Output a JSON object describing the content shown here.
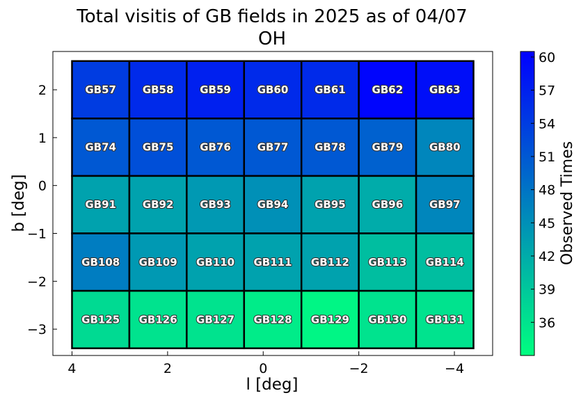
{
  "chart_data": {
    "type": "heatmap",
    "title": "Total visitis of GB fields in 2025 as of 04/07",
    "subtitle": "OH",
    "xlabel": "l [deg]",
    "ylabel": "b [deg]",
    "xlim": [
      4.4,
      -4.8
    ],
    "ylim": [
      -3.55,
      2.8
    ],
    "x_ticks": [
      4,
      2,
      0,
      -2,
      -4
    ],
    "x_tick_labels": [
      "4",
      "2",
      "0",
      "−2",
      "−4"
    ],
    "y_ticks": [
      2,
      1,
      0,
      -1,
      -2,
      -3
    ],
    "y_tick_labels": [
      "2",
      "1",
      "0",
      "−1",
      "−2",
      "−3"
    ],
    "colorbar": {
      "label": "Observed Times",
      "range": [
        33,
        60.5
      ],
      "ticks": [
        36,
        39,
        42,
        45,
        48,
        51,
        54,
        57,
        60
      ],
      "colormap": "winter_r",
      "low_color": "#00ff80",
      "high_color": "#0000ff"
    },
    "col_edges": [
      4.0,
      2.8,
      1.6,
      0.4,
      -0.8,
      -2.0,
      -3.2,
      -4.4
    ],
    "row_edges": [
      2.6,
      1.4,
      0.2,
      -1.0,
      -2.2,
      -3.4
    ],
    "cells": [
      [
        {
          "label": "GB57",
          "value": 54
        },
        {
          "label": "GB58",
          "value": 56
        },
        {
          "label": "GB59",
          "value": 57
        },
        {
          "label": "GB60",
          "value": 56
        },
        {
          "label": "GB61",
          "value": 56
        },
        {
          "label": "GB62",
          "value": 60
        },
        {
          "label": "GB63",
          "value": 59
        }
      ],
      [
        {
          "label": "GB74",
          "value": 51
        },
        {
          "label": "GB75",
          "value": 52
        },
        {
          "label": "GB76",
          "value": 51
        },
        {
          "label": "GB77",
          "value": 51
        },
        {
          "label": "GB78",
          "value": 51
        },
        {
          "label": "GB79",
          "value": 50
        },
        {
          "label": "GB80",
          "value": 46
        }
      ],
      [
        {
          "label": "GB91",
          "value": 43
        },
        {
          "label": "GB92",
          "value": 43
        },
        {
          "label": "GB93",
          "value": 44
        },
        {
          "label": "GB94",
          "value": 45
        },
        {
          "label": "GB95",
          "value": 43
        },
        {
          "label": "GB96",
          "value": 42
        },
        {
          "label": "GB97",
          "value": 46
        }
      ],
      [
        {
          "label": "GB108",
          "value": 47
        },
        {
          "label": "GB109",
          "value": 44
        },
        {
          "label": "GB110",
          "value": 43
        },
        {
          "label": "GB111",
          "value": 43
        },
        {
          "label": "GB112",
          "value": 43
        },
        {
          "label": "GB113",
          "value": 40
        },
        {
          "label": "GB114",
          "value": 40
        }
      ],
      [
        {
          "label": "GB125",
          "value": 37
        },
        {
          "label": "GB126",
          "value": 36
        },
        {
          "label": "GB127",
          "value": 36
        },
        {
          "label": "GB128",
          "value": 35
        },
        {
          "label": "GB129",
          "value": 34
        },
        {
          "label": "GB130",
          "value": 36
        },
        {
          "label": "GB131",
          "value": 36
        }
      ]
    ]
  }
}
